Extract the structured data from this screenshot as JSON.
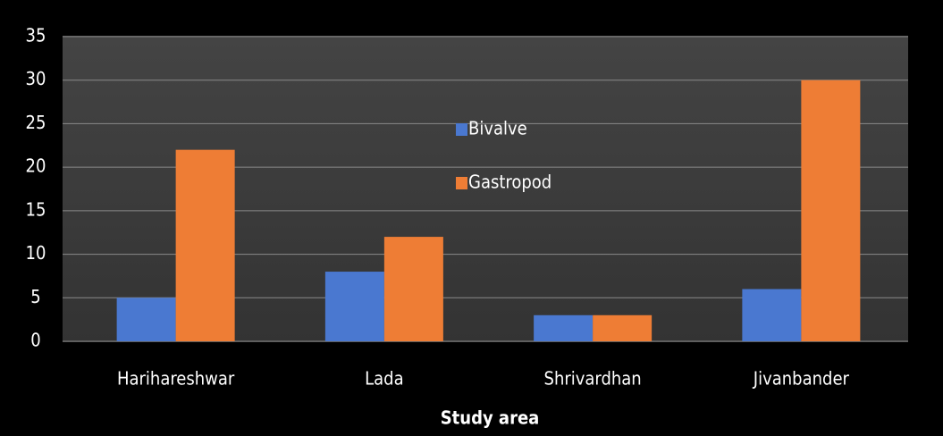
{
  "chart_data": {
    "type": "bar",
    "x_label": "Study area",
    "categories": [
      "Harihareshwar",
      "Lada",
      "Shrivardhan",
      "Jivanbander"
    ],
    "series": [
      {
        "name": "Bivalve",
        "color": "#4a78d0",
        "values": [
          5,
          8,
          3,
          6
        ]
      },
      {
        "name": "Gastropod",
        "color": "#ee7d35",
        "values": [
          22,
          12,
          3,
          30
        ]
      }
    ],
    "ylim": [
      0,
      35
    ],
    "yticks": [
      0,
      5,
      10,
      15,
      20,
      25,
      30,
      35
    ],
    "grid": true,
    "legend_position": "center"
  }
}
